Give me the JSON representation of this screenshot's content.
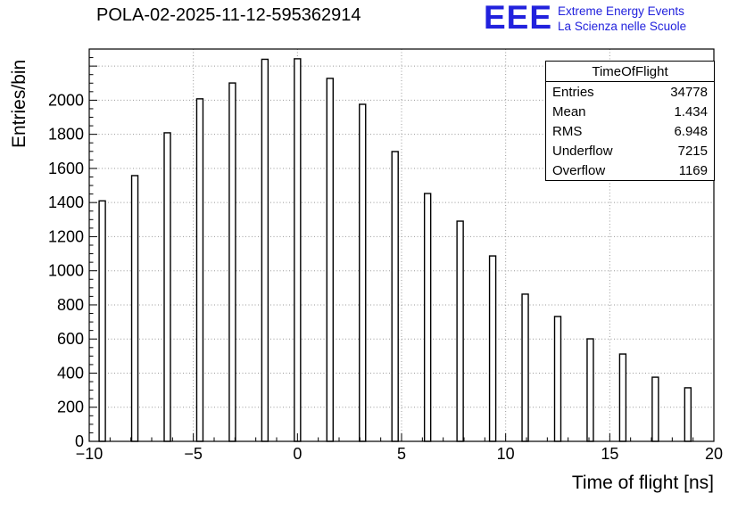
{
  "title": "POLA-02-2025-11-12-595362914",
  "logo": {
    "text": "EEE",
    "line1": "Extreme Energy Events",
    "line2": "La Scienza nelle Scuole",
    "color": "#2121dd"
  },
  "stats": {
    "header": "TimeOfFlight",
    "rows": [
      {
        "label": "Entries",
        "value": "34778"
      },
      {
        "label": "Mean",
        "value": "1.434"
      },
      {
        "label": "RMS",
        "value": "6.948"
      },
      {
        "label": "Underflow",
        "value": "7215"
      },
      {
        "label": "Overflow",
        "value": "1169"
      }
    ]
  },
  "chart_data": {
    "type": "bar",
    "title": "POLA-02-2025-11-12-595362914",
    "xlabel": "Time of flight [ns]",
    "ylabel": "Entries/bin",
    "xlim": [
      -10,
      20
    ],
    "ylim": [
      0,
      2300
    ],
    "x_major_ticks": [
      -10,
      -5,
      0,
      5,
      10,
      15,
      20
    ],
    "x_minor_step": 1,
    "y_major_step": 200,
    "y_minor_step": 50,
    "grid": true,
    "legend_position": "none",
    "bar_width_ns": 0.3,
    "x": [
      -9.375,
      -7.8125,
      -6.25,
      -4.6875,
      -3.125,
      -1.5625,
      0,
      1.5625,
      3.125,
      4.6875,
      6.25,
      7.8125,
      9.375,
      10.9375,
      12.5,
      14.0625,
      15.625,
      17.1875,
      18.75
    ],
    "values": [
      1410,
      1558,
      1809,
      2008,
      2101,
      2240,
      2243,
      2128,
      1976,
      1699,
      1453,
      1291,
      1087,
      863,
      732,
      601,
      512,
      376,
      314
    ]
  }
}
